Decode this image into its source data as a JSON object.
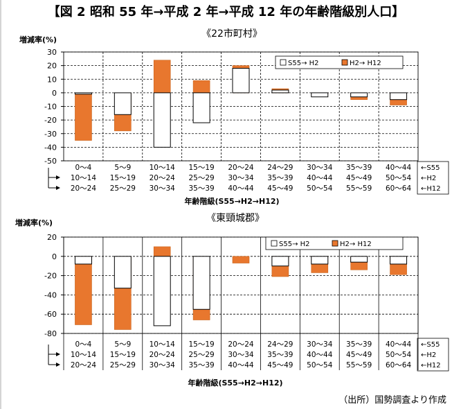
{
  "page": {
    "title": "【図 2 昭和 55 年→平成 2 年→平成 12 年の年齢階級別人口】",
    "source_note": "（出所）国勢調査より作成"
  },
  "chart_data": [
    {
      "type": "bar",
      "title": "《22市町村》",
      "ylabel": "増減率(%)",
      "xlabel": "年齢階級(S55→H2→H12)",
      "ylim": [
        -50,
        30
      ],
      "yticks": [
        30,
        20,
        10,
        0,
        -10,
        -20,
        -30,
        -40,
        -50
      ],
      "grid": true,
      "legend": "top-right",
      "row_markers": [
        "←S55",
        "←H2",
        "←H12"
      ],
      "categories": [
        [
          "0～4",
          "10～14",
          "20～24"
        ],
        [
          "5～9",
          "15～19",
          "25～29"
        ],
        [
          "10～14",
          "20～24",
          "30～34"
        ],
        [
          "15～19",
          "25～29",
          "35～39"
        ],
        [
          "20～24",
          "30～34",
          "40～44"
        ],
        [
          "24～29",
          "35～39",
          "45～49"
        ],
        [
          "30～34",
          "40～44",
          "50～54"
        ],
        [
          "35～39",
          "45～49",
          "55～59"
        ],
        [
          "40～44",
          "50～54",
          "60～64"
        ]
      ],
      "series": [
        {
          "name": "S55→ H2",
          "color": "#ffffff",
          "values": [
            -1,
            -16,
            -40,
            -22,
            18,
            2,
            -3,
            -3,
            -5
          ]
        },
        {
          "name": "H2→ H12",
          "color": "#e8772e",
          "values": [
            -35,
            -28,
            24,
            9,
            20,
            3,
            -2,
            -5,
            -9
          ]
        }
      ]
    },
    {
      "type": "bar",
      "title": "《東頸城郡》",
      "ylabel": "増減率(%)",
      "xlabel": "年齢階級(S55→H2→H12)",
      "ylim": [
        -80,
        20
      ],
      "yticks": [
        20,
        0,
        -20,
        -40,
        -60,
        -80
      ],
      "grid": true,
      "legend": "top-right",
      "row_markers": [
        "←S55",
        "←H2",
        "←H12"
      ],
      "categories": [
        [
          "0～4",
          "10～14",
          "20～24"
        ],
        [
          "5～9",
          "15～19",
          "25～29"
        ],
        [
          "10～14",
          "20～24",
          "30～34"
        ],
        [
          "15～19",
          "25～29",
          "35～39"
        ],
        [
          "20～24",
          "30～34",
          "40～44"
        ],
        [
          "24～29",
          "35～39",
          "45～49"
        ],
        [
          "30～34",
          "40～44",
          "50～54"
        ],
        [
          "35～39",
          "45～49",
          "55～59"
        ],
        [
          "40～44",
          "50～54",
          "60～64"
        ]
      ],
      "series": [
        {
          "name": "S55→ H2",
          "color": "#ffffff",
          "values": [
            -8,
            -33,
            -72,
            -55,
            0,
            -10,
            -8,
            -6,
            -8
          ]
        },
        {
          "name": "H2→ H12",
          "color": "#e8772e",
          "values": [
            -71,
            -76,
            10,
            -66,
            -7,
            -21,
            -17,
            -14,
            -19
          ]
        }
      ]
    }
  ]
}
